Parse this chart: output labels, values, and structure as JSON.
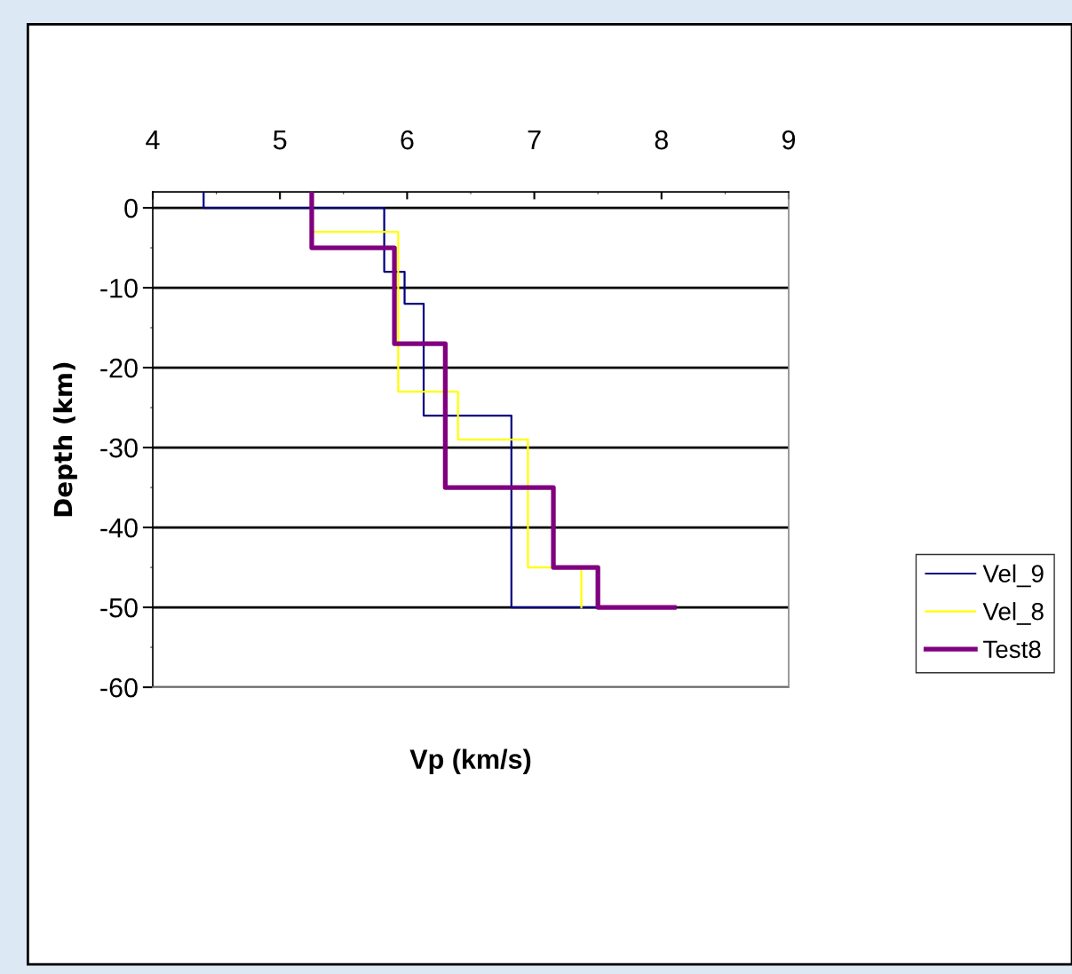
{
  "chart_data": {
    "type": "line",
    "xlabel": "Vp (km/s)",
    "ylabel": "Depth (km)",
    "xlim": [
      4,
      9
    ],
    "xticks": [
      4,
      5,
      6,
      7,
      8,
      9
    ],
    "ylim": [
      -60,
      2
    ],
    "yticks": [
      -60,
      -50,
      -40,
      -30,
      -20,
      -10,
      0
    ],
    "grid": "y",
    "legend": "right",
    "marker": "none",
    "line_style": "solid",
    "series": [
      {
        "name": "Vel_9",
        "color": "#000080",
        "x": [
          4.4,
          4.4,
          5.82,
          5.82,
          5.98,
          5.98,
          6.13,
          6.13,
          6.82,
          6.82,
          7.48
        ],
        "values": [
          2,
          0,
          0,
          -8,
          -8,
          -12,
          -12,
          -26,
          -26,
          -50,
          -50
        ]
      },
      {
        "name": "Vel_8",
        "color": "#ffff00",
        "x": [
          5.25,
          5.93,
          5.93,
          6.4,
          6.4,
          6.95,
          6.95,
          7.37,
          7.37
        ],
        "values": [
          -3,
          -3,
          -23,
          -23,
          -29,
          -29,
          -45,
          -45,
          -50
        ]
      },
      {
        "name": "Test8",
        "color": "#800080",
        "x": [
          5.25,
          5.25,
          5.9,
          5.9,
          6.3,
          6.3,
          7.15,
          7.15,
          7.5,
          7.5,
          8.1
        ],
        "values": [
          2,
          -5,
          -5,
          -17,
          -17,
          -35,
          -35,
          -45,
          -45,
          -50,
          -50
        ]
      }
    ]
  }
}
